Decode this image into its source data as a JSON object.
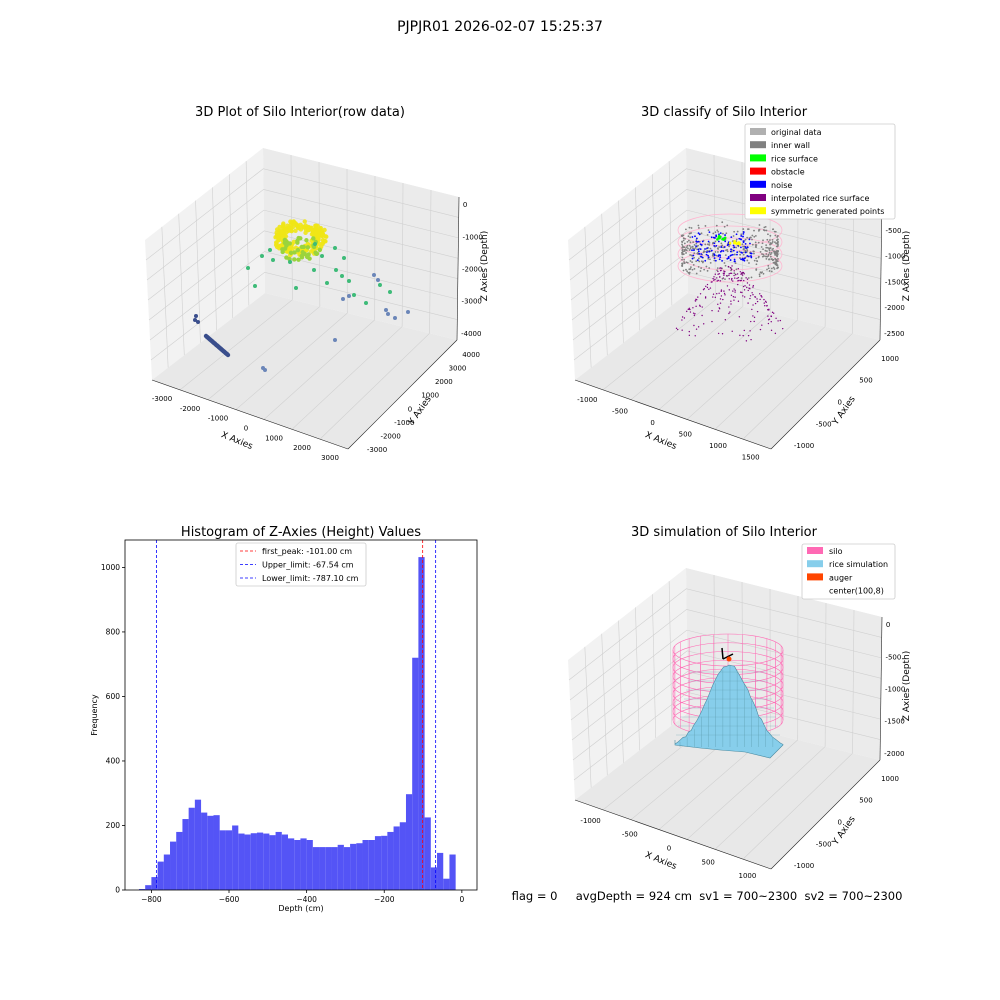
{
  "suptitle": "PJPJR01 2026-02-07 15:25:37",
  "status_line": "flag = 0     avgDepth = 924 cm  sv1 = 700~2300  sv2 = 700~2300",
  "colors": {
    "raw_yellow": "#f0e616",
    "raw_green": "#3dbb78",
    "raw_blue": "#3a4e8c",
    "wall_gray": "#808080",
    "noise_blue": "#0000ff",
    "rice_green": "#00ff00",
    "interp_purple": "#800080",
    "sym_yellow": "#ffff00",
    "silo_pink": "#ff69b4",
    "rice_sim": "#87ceeb",
    "auger": "#ff4500",
    "hist_bar": "#4b4bf5"
  },
  "chart_data": [
    {
      "type": "scatter",
      "subtype": "3d",
      "title": "3D Plot of Silo Interior(row data)",
      "xlabel": "X Axies",
      "ylabel": "Y Axies",
      "zlabel": "Z Axies (Depth)",
      "x_ticks": [
        "-3000",
        "-2000",
        "-1000",
        "0",
        "1000",
        "2000",
        "3000"
      ],
      "y_ticks": [
        "-3000",
        "-2000",
        "-1000",
        "0",
        "1000",
        "2000",
        "3000",
        "4000"
      ],
      "z_ticks": [
        "0",
        "-1000",
        "-2000",
        "-3000",
        "-4000"
      ]
    },
    {
      "type": "scatter",
      "subtype": "3d",
      "title": "3D classify of Silo Interior",
      "xlabel": "X Axies",
      "ylabel": "Y Axies",
      "zlabel": "Z Axies (Depth)",
      "x_ticks": [
        "-1000",
        "-500",
        "0",
        "500",
        "1000",
        "1500"
      ],
      "y_ticks": [
        "-1000",
        "-500",
        "0",
        "500",
        "1000"
      ],
      "z_ticks": [
        "0",
        "-500",
        "-1000",
        "-1500",
        "-2000",
        "-2500"
      ],
      "legend": [
        {
          "label": "original data",
          "color": "#b0b0b0"
        },
        {
          "label": "inner wall",
          "color": "#808080"
        },
        {
          "label": "rice surface",
          "color": "#00ff00"
        },
        {
          "label": "obstacle",
          "color": "#ff0000"
        },
        {
          "label": "noise",
          "color": "#0000ff"
        },
        {
          "label": "interpolated rice surface",
          "color": "#800080"
        },
        {
          "label": "symmetric generated points",
          "color": "#ffff00"
        }
      ]
    },
    {
      "type": "bar",
      "subtype": "histogram",
      "title": "Histogram of Z-Axies (Height) Values",
      "xlabel": "Depth (cm)",
      "ylabel": "Frequency",
      "xlim": [
        -868,
        39
      ],
      "ylim": [
        0,
        1085
      ],
      "x_ticks": [
        -800,
        -600,
        -400,
        -200,
        0
      ],
      "y_ticks": [
        0,
        200,
        400,
        600,
        800,
        1000
      ],
      "bin_width": 16,
      "bins": [
        [
          -832,
          3
        ],
        [
          -816,
          15
        ],
        [
          -800,
          40
        ],
        [
          -784,
          88
        ],
        [
          -768,
          110
        ],
        [
          -752,
          150
        ],
        [
          -736,
          180
        ],
        [
          -720,
          220
        ],
        [
          -704,
          255
        ],
        [
          -688,
          280
        ],
        [
          -672,
          240
        ],
        [
          -656,
          230
        ],
        [
          -640,
          232
        ],
        [
          -624,
          185
        ],
        [
          -608,
          185
        ],
        [
          -592,
          200
        ],
        [
          -576,
          175
        ],
        [
          -560,
          172
        ],
        [
          -544,
          176
        ],
        [
          -528,
          178
        ],
        [
          -512,
          175
        ],
        [
          -496,
          170
        ],
        [
          -480,
          180
        ],
        [
          -464,
          172
        ],
        [
          -448,
          160
        ],
        [
          -432,
          155
        ],
        [
          -416,
          160
        ],
        [
          -400,
          155
        ],
        [
          -384,
          133
        ],
        [
          -368,
          133
        ],
        [
          -352,
          133
        ],
        [
          -336,
          133
        ],
        [
          -320,
          140
        ],
        [
          -304,
          133
        ],
        [
          -288,
          143
        ],
        [
          -272,
          145
        ],
        [
          -256,
          155
        ],
        [
          -240,
          155
        ],
        [
          -224,
          167
        ],
        [
          -208,
          168
        ],
        [
          -192,
          180
        ],
        [
          -176,
          197
        ],
        [
          -160,
          210
        ],
        [
          -144,
          297
        ],
        [
          -128,
          720
        ],
        [
          -112,
          1032
        ],
        [
          -96,
          225
        ],
        [
          -80,
          70
        ],
        [
          -64,
          115
        ],
        [
          -48,
          35
        ],
        [
          -32,
          110
        ]
      ],
      "lines": [
        {
          "label": "first_peak: -101.00 cm",
          "x": -101.0,
          "color": "#ff0000"
        },
        {
          "label": "Upper_limit: -67.54 cm",
          "x": -67.54,
          "color": "#0000ff"
        },
        {
          "label": "Lower_limit: -787.10 cm",
          "x": -787.1,
          "color": "#0000ff"
        }
      ]
    },
    {
      "type": "surface",
      "subtype": "3d",
      "title": "3D simulation of Silo Interior",
      "xlabel": "X Axies",
      "ylabel": "Y Axies",
      "zlabel": "Z Axies (Depth)",
      "x_ticks": [
        "-1000",
        "-500",
        "0",
        "500",
        "1000"
      ],
      "y_ticks": [
        "-1000",
        "-500",
        "0",
        "500",
        "1000"
      ],
      "z_ticks": [
        "0",
        "-500",
        "-1000",
        "-1500",
        "-2000"
      ],
      "legend": [
        {
          "label": "silo",
          "color": "#ff69b4"
        },
        {
          "label": "rice simulation",
          "color": "#87ceeb"
        },
        {
          "label": "auger",
          "color": "#ff4500"
        },
        {
          "label": "center(100,8)",
          "color": ""
        }
      ]
    }
  ]
}
